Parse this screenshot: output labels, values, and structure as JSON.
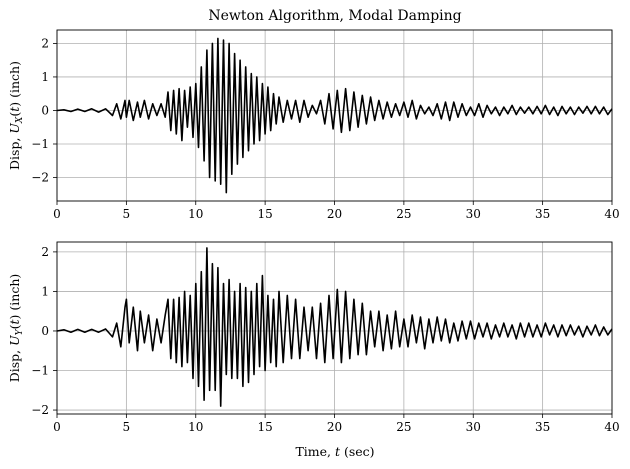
{
  "figure": {
    "title": "Newton Algorithm, Modal Damping",
    "xlabel": "Time, t (sec)"
  },
  "chart_data": [
    {
      "type": "line",
      "title": "Newton Algorithm, Modal Damping",
      "ylabel": "Disp, U_X(t) (inch)",
      "xlabel": "",
      "xlim": [
        0,
        40
      ],
      "ylim": [
        -2.7,
        2.4
      ],
      "xticks": [
        0,
        5,
        10,
        15,
        20,
        25,
        30,
        35,
        40
      ],
      "yticks": [
        -2,
        -1,
        0,
        1,
        2
      ],
      "grid": true,
      "line_color": "#000000",
      "series": [
        {
          "x": [
            0,
            0.5,
            1,
            1.5,
            2,
            2.5,
            3,
            3.5,
            4,
            4.3,
            4.6,
            4.9,
            5.0,
            5.2,
            5.5,
            5.8,
            6.0,
            6.3,
            6.6,
            6.9,
            7.2,
            7.5,
            7.8,
            8.0,
            8.2,
            8.4,
            8.6,
            8.8,
            9.0,
            9.2,
            9.4,
            9.6,
            9.8,
            10.0,
            10.2,
            10.4,
            10.6,
            10.8,
            11.0,
            11.2,
            11.4,
            11.6,
            11.8,
            12.0,
            12.2,
            12.4,
            12.6,
            12.8,
            13.0,
            13.2,
            13.4,
            13.6,
            13.8,
            14.0,
            14.2,
            14.4,
            14.6,
            14.8,
            15.0,
            15.2,
            15.4,
            15.6,
            15.8,
            16.0,
            16.3,
            16.6,
            16.9,
            17.2,
            17.5,
            17.8,
            18.1,
            18.4,
            18.7,
            19.0,
            19.3,
            19.6,
            19.9,
            20.2,
            20.5,
            20.8,
            21.1,
            21.4,
            21.7,
            22.0,
            22.3,
            22.6,
            22.9,
            23.2,
            23.5,
            23.8,
            24.1,
            24.4,
            24.7,
            25.0,
            25.3,
            25.6,
            25.9,
            26.2,
            26.5,
            26.8,
            27.1,
            27.4,
            27.7,
            28.0,
            28.3,
            28.6,
            28.9,
            29.2,
            29.5,
            29.8,
            30.1,
            30.4,
            30.7,
            31.0,
            31.3,
            31.6,
            31.9,
            32.2,
            32.5,
            32.8,
            33.1,
            33.4,
            33.7,
            34.0,
            34.3,
            34.6,
            34.9,
            35.2,
            35.5,
            35.8,
            36.1,
            36.4,
            36.7,
            37.0,
            37.3,
            37.6,
            37.9,
            38.2,
            38.5,
            38.8,
            39.1,
            39.4,
            39.7,
            40.0
          ],
          "y": [
            0,
            0.02,
            -0.03,
            0.04,
            -0.03,
            0.05,
            -0.05,
            0.05,
            -0.15,
            0.2,
            -0.25,
            0.3,
            -0.2,
            0.3,
            -0.3,
            0.25,
            -0.2,
            0.3,
            -0.25,
            0.2,
            -0.15,
            0.2,
            -0.2,
            0.55,
            -0.6,
            0.6,
            -0.7,
            0.65,
            -0.9,
            0.6,
            -0.5,
            0.7,
            -0.8,
            0.8,
            -1.1,
            1.3,
            -1.5,
            1.8,
            -2.0,
            2.0,
            -2.1,
            2.15,
            -2.2,
            2.1,
            -2.45,
            2.0,
            -1.9,
            1.7,
            -1.6,
            1.5,
            -1.4,
            1.3,
            -1.2,
            1.1,
            -1.0,
            1.0,
            -0.9,
            0.8,
            -0.7,
            0.7,
            -0.6,
            0.5,
            -0.4,
            0.4,
            -0.35,
            0.3,
            -0.25,
            0.3,
            -0.35,
            0.3,
            -0.2,
            0.15,
            -0.1,
            0.3,
            -0.4,
            0.5,
            -0.55,
            0.6,
            -0.65,
            0.65,
            -0.6,
            0.55,
            -0.5,
            0.45,
            -0.4,
            0.4,
            -0.3,
            0.3,
            -0.25,
            0.25,
            -0.2,
            0.2,
            -0.15,
            0.25,
            -0.2,
            0.3,
            -0.25,
            0.15,
            -0.1,
            0.1,
            -0.15,
            0.2,
            -0.25,
            0.25,
            -0.3,
            0.25,
            -0.2,
            0.2,
            -0.15,
            0.1,
            -0.15,
            0.2,
            -0.2,
            0.15,
            -0.1,
            0.1,
            -0.15,
            0.1,
            -0.1,
            0.15,
            -0.12,
            0.1,
            -0.08,
            0.1,
            -0.1,
            0.12,
            -0.1,
            0.15,
            -0.12,
            0.1,
            -0.15,
            0.12,
            -0.1,
            0.1,
            -0.12,
            0.1,
            -0.08,
            0.12,
            -0.1,
            0.12,
            -0.1,
            0.1,
            -0.12,
            0.05
          ]
        }
      ]
    },
    {
      "type": "line",
      "title": "",
      "ylabel": "Disp, U_Y(t) (inch)",
      "xlabel": "Time, t (sec)",
      "xlim": [
        0,
        40
      ],
      "ylim": [
        -2.1,
        2.25
      ],
      "xticks": [
        0,
        5,
        10,
        15,
        20,
        25,
        30,
        35,
        40
      ],
      "yticks": [
        -2,
        -1,
        0,
        1,
        2
      ],
      "grid": true,
      "line_color": "#000000",
      "series": [
        {
          "x": [
            0,
            0.5,
            1,
            1.5,
            2,
            2.5,
            3,
            3.5,
            4,
            4.3,
            4.6,
            4.9,
            5.0,
            5.2,
            5.5,
            5.8,
            6.0,
            6.3,
            6.6,
            6.9,
            7.2,
            7.5,
            7.8,
            8.0,
            8.2,
            8.4,
            8.6,
            8.8,
            9.0,
            9.2,
            9.4,
            9.6,
            9.8,
            10.0,
            10.2,
            10.4,
            10.6,
            10.8,
            11.0,
            11.2,
            11.4,
            11.6,
            11.8,
            12.0,
            12.2,
            12.4,
            12.6,
            12.8,
            13.0,
            13.2,
            13.4,
            13.6,
            13.8,
            14.0,
            14.2,
            14.4,
            14.6,
            14.8,
            15.0,
            15.2,
            15.4,
            15.6,
            15.8,
            16.0,
            16.3,
            16.6,
            16.9,
            17.2,
            17.5,
            17.8,
            18.1,
            18.4,
            18.7,
            19.0,
            19.3,
            19.6,
            19.9,
            20.2,
            20.5,
            20.8,
            21.1,
            21.4,
            21.7,
            22.0,
            22.3,
            22.6,
            22.9,
            23.2,
            23.5,
            23.8,
            24.1,
            24.4,
            24.7,
            25.0,
            25.3,
            25.6,
            25.9,
            26.2,
            26.5,
            26.8,
            27.1,
            27.4,
            27.7,
            28.0,
            28.3,
            28.6,
            28.9,
            29.2,
            29.5,
            29.8,
            30.1,
            30.4,
            30.7,
            31.0,
            31.3,
            31.6,
            31.9,
            32.2,
            32.5,
            32.8,
            33.1,
            33.4,
            33.7,
            34.0,
            34.3,
            34.6,
            34.9,
            35.2,
            35.5,
            35.8,
            36.1,
            36.4,
            36.7,
            37.0,
            37.3,
            37.6,
            37.9,
            38.2,
            38.5,
            38.8,
            39.1,
            39.4,
            39.7,
            40.0
          ],
          "y": [
            0,
            0.03,
            -0.03,
            0.04,
            -0.03,
            0.04,
            -0.03,
            0.05,
            -0.15,
            0.2,
            -0.4,
            0.6,
            0.8,
            -0.3,
            0.6,
            -0.5,
            0.5,
            -0.3,
            0.4,
            -0.5,
            0.3,
            -0.3,
            0.4,
            0.8,
            -0.7,
            0.8,
            -0.8,
            0.85,
            -0.9,
            1.0,
            -0.8,
            0.9,
            -1.2,
            1.2,
            -1.4,
            1.5,
            -1.75,
            2.1,
            -1.5,
            1.7,
            -1.5,
            1.6,
            -1.9,
            1.2,
            -1.1,
            1.3,
            -1.2,
            1.0,
            -1.2,
            1.2,
            -1.4,
            1.1,
            -1.3,
            1.0,
            -1.1,
            1.2,
            -0.9,
            1.4,
            -1.0,
            0.9,
            -0.8,
            0.8,
            -0.9,
            1.0,
            -0.8,
            0.9,
            -0.7,
            0.8,
            -0.7,
            0.6,
            -0.5,
            0.6,
            -0.7,
            0.7,
            -0.8,
            0.9,
            -0.7,
            1.05,
            -0.8,
            1.0,
            -0.7,
            0.8,
            -0.6,
            0.7,
            -0.6,
            0.5,
            -0.4,
            0.5,
            -0.5,
            0.4,
            -0.45,
            0.5,
            -0.4,
            0.3,
            -0.4,
            0.4,
            -0.3,
            0.35,
            -0.45,
            0.3,
            -0.3,
            0.35,
            -0.25,
            0.3,
            -0.3,
            0.2,
            -0.25,
            0.25,
            -0.2,
            0.25,
            -0.2,
            0.2,
            -0.15,
            0.2,
            -0.2,
            0.15,
            -0.15,
            0.2,
            -0.15,
            0.15,
            -0.2,
            0.2,
            -0.15,
            0.2,
            -0.15,
            0.15,
            -0.15,
            0.2,
            -0.1,
            0.15,
            -0.15,
            0.15,
            -0.12,
            0.15,
            -0.1,
            0.12,
            -0.15,
            0.12,
            -0.1,
            0.15,
            -0.12,
            0.1,
            -0.1,
            0.05
          ]
        }
      ]
    }
  ]
}
